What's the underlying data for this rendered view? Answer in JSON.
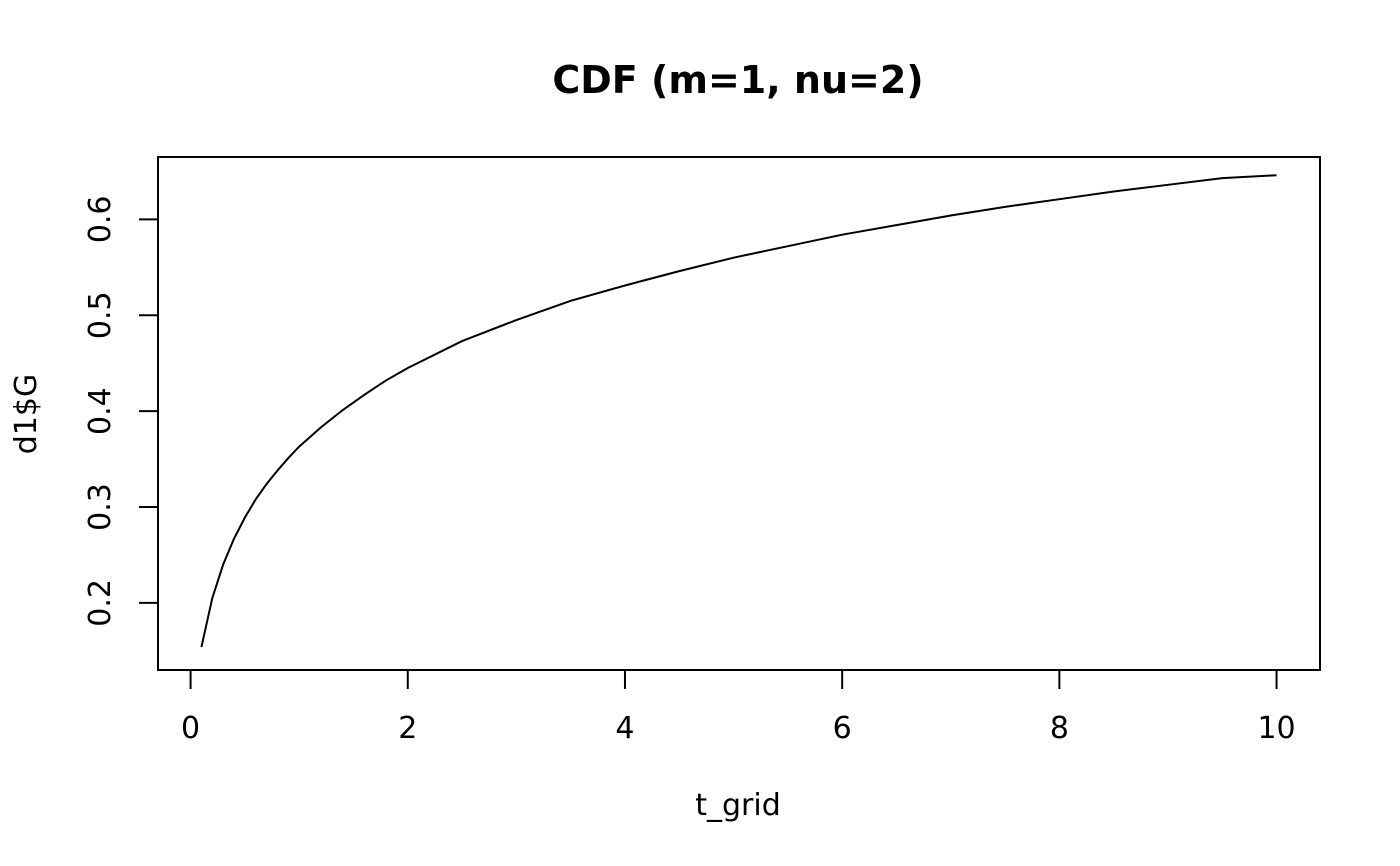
{
  "chart_data": {
    "type": "line",
    "title": "CDF (m=1, nu=2)",
    "xlabel": "t_grid",
    "ylabel": "d1$G",
    "xlim": [
      -0.3,
      10.4
    ],
    "ylim": [
      0.13,
      0.665
    ],
    "x_ticks": [
      0,
      2,
      4,
      6,
      8,
      10
    ],
    "x_tick_labels": [
      "0",
      "2",
      "4",
      "6",
      "8",
      "10"
    ],
    "y_ticks": [
      0.2,
      0.3,
      0.4,
      0.5,
      0.6
    ],
    "y_tick_labels": [
      "0.2",
      "0.3",
      "0.4",
      "0.5",
      "0.6"
    ],
    "grid": false,
    "series": [
      {
        "x": [
          0.1,
          0.2,
          0.3,
          0.4,
          0.5,
          0.6,
          0.7,
          0.8,
          0.9,
          1.0,
          1.2,
          1.4,
          1.6,
          1.8,
          2.0,
          2.5,
          3.0,
          3.5,
          4.0,
          4.5,
          5.0,
          5.5,
          6.0,
          6.5,
          7.0,
          7.5,
          8.0,
          8.5,
          9.0,
          9.5,
          10.0
        ],
        "y": [
          0.154,
          0.205,
          0.24,
          0.267,
          0.289,
          0.308,
          0.324,
          0.338,
          0.351,
          0.363,
          0.383,
          0.401,
          0.417,
          0.432,
          0.445,
          0.473,
          0.495,
          0.515,
          0.531,
          0.546,
          0.56,
          0.572,
          0.584,
          0.594,
          0.604,
          0.613,
          0.621,
          0.629,
          0.636,
          0.643,
          0.646
        ]
      }
    ]
  }
}
